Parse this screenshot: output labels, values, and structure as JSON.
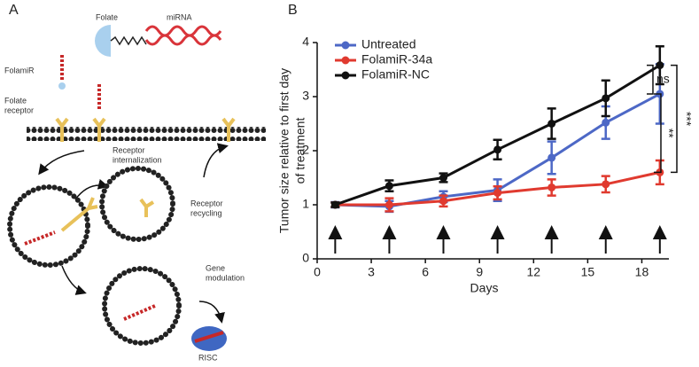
{
  "panel_labels": [
    "A",
    "B"
  ],
  "diagram": {
    "folate": "Folate",
    "mirna": "miRNA",
    "folamir": "FolamiR",
    "folate_receptor": [
      "Folate",
      "receptor"
    ],
    "receptor_internalization": [
      "Receptor",
      "internalization"
    ],
    "receptor_recycling": [
      "Receptor",
      "recycling"
    ],
    "gene_modulation": [
      "Gene",
      "modulation"
    ],
    "risc": "RISC"
  },
  "chart_data": {
    "type": "line",
    "x": [
      1,
      4,
      7,
      10,
      13,
      16,
      19
    ],
    "xlabel": "Days",
    "ylabel": [
      "Tumor size relative to first day",
      "of treatment"
    ],
    "xlim": [
      0,
      19.5
    ],
    "xticks": [
      0,
      3,
      6,
      9,
      12,
      15,
      18
    ],
    "ylim": [
      0,
      4
    ],
    "yticks": [
      0,
      1,
      2,
      3,
      4
    ],
    "legend": "top-left",
    "series": [
      {
        "name": "Untreated",
        "color": "#4d68c6",
        "values": [
          1,
          0.97,
          1.15,
          1.27,
          1.87,
          2.52,
          3.05
        ],
        "errors": [
          0.05,
          0.1,
          0.1,
          0.2,
          0.3,
          0.3,
          0.55
        ]
      },
      {
        "name": "FolamiR-34a",
        "color": "#e03a2f",
        "values": [
          1,
          1.0,
          1.07,
          1.22,
          1.32,
          1.38,
          1.6
        ],
        "errors": [
          0.04,
          0.12,
          0.1,
          0.12,
          0.15,
          0.15,
          0.22
        ]
      },
      {
        "name": "FolamiR-NC",
        "color": "#111111",
        "values": [
          1,
          1.35,
          1.5,
          2.02,
          2.5,
          2.97,
          3.58
        ],
        "errors": [
          0.04,
          0.1,
          0.08,
          0.18,
          0.28,
          0.33,
          0.35
        ]
      }
    ],
    "annotations": [
      "ns",
      "**",
      "***"
    ]
  }
}
